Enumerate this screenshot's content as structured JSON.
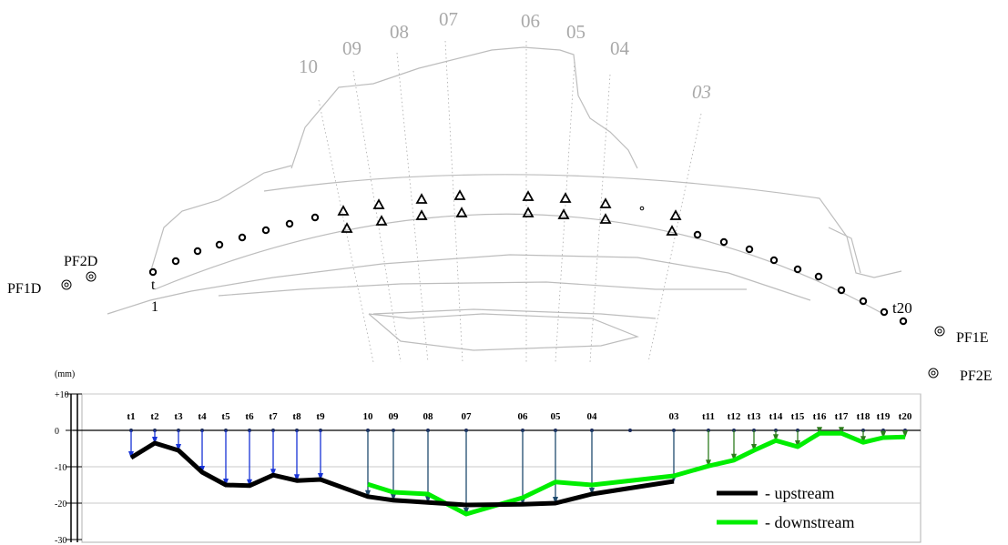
{
  "plan": {
    "section_labels": [
      "10",
      "09",
      "08",
      "07",
      "06",
      "05",
      "04",
      "03"
    ],
    "point_first": "t",
    "point_first_sub": "1",
    "point_last": "t20",
    "pendulums": [
      "PF1D",
      "PF2D",
      "PF1E",
      "PF2E"
    ]
  },
  "chart_data": {
    "type": "line",
    "unit_label": "(mm)",
    "ytick_labels": [
      "+10",
      "0",
      "-10",
      "-20",
      "-30"
    ],
    "ylim": [
      -30,
      10
    ],
    "grid": true,
    "legend_position": "bottom-right",
    "x": [
      "t1",
      "t2",
      "t3",
      "t4",
      "t5",
      "t6",
      "t7",
      "t8",
      "t9",
      "10",
      "09",
      "08",
      "07",
      "06",
      "05",
      "04",
      "03",
      "t11",
      "t12",
      "t13",
      "t14",
      "t15",
      "t16",
      "t17",
      "t18",
      "t19",
      "t20"
    ],
    "series": [
      {
        "name": "- upstream",
        "color": "#000000",
        "values": [
          -7.5,
          -3.5,
          -5.5,
          -11.5,
          -15,
          -15.2,
          -12.3,
          -13.8,
          -13.5,
          -18.2,
          -19.2,
          -19.8,
          -20.5,
          -20.3,
          -20,
          -17.5,
          -14,
          null,
          null,
          null,
          null,
          null,
          null,
          null,
          null,
          null,
          null
        ]
      },
      {
        "name": "- downstream",
        "color": "#00ee00",
        "values": [
          null,
          null,
          null,
          null,
          null,
          null,
          null,
          null,
          null,
          -14.8,
          -17,
          -17.5,
          -23,
          -18.5,
          -14.2,
          -15,
          -12.5,
          -9.8,
          -8.2,
          -5.5,
          -2.8,
          -4.5,
          -0.8,
          -0.8,
          -3.3,
          -2,
          -1.8
        ]
      }
    ],
    "legend": [
      "- upstream",
      "- downstream"
    ]
  }
}
